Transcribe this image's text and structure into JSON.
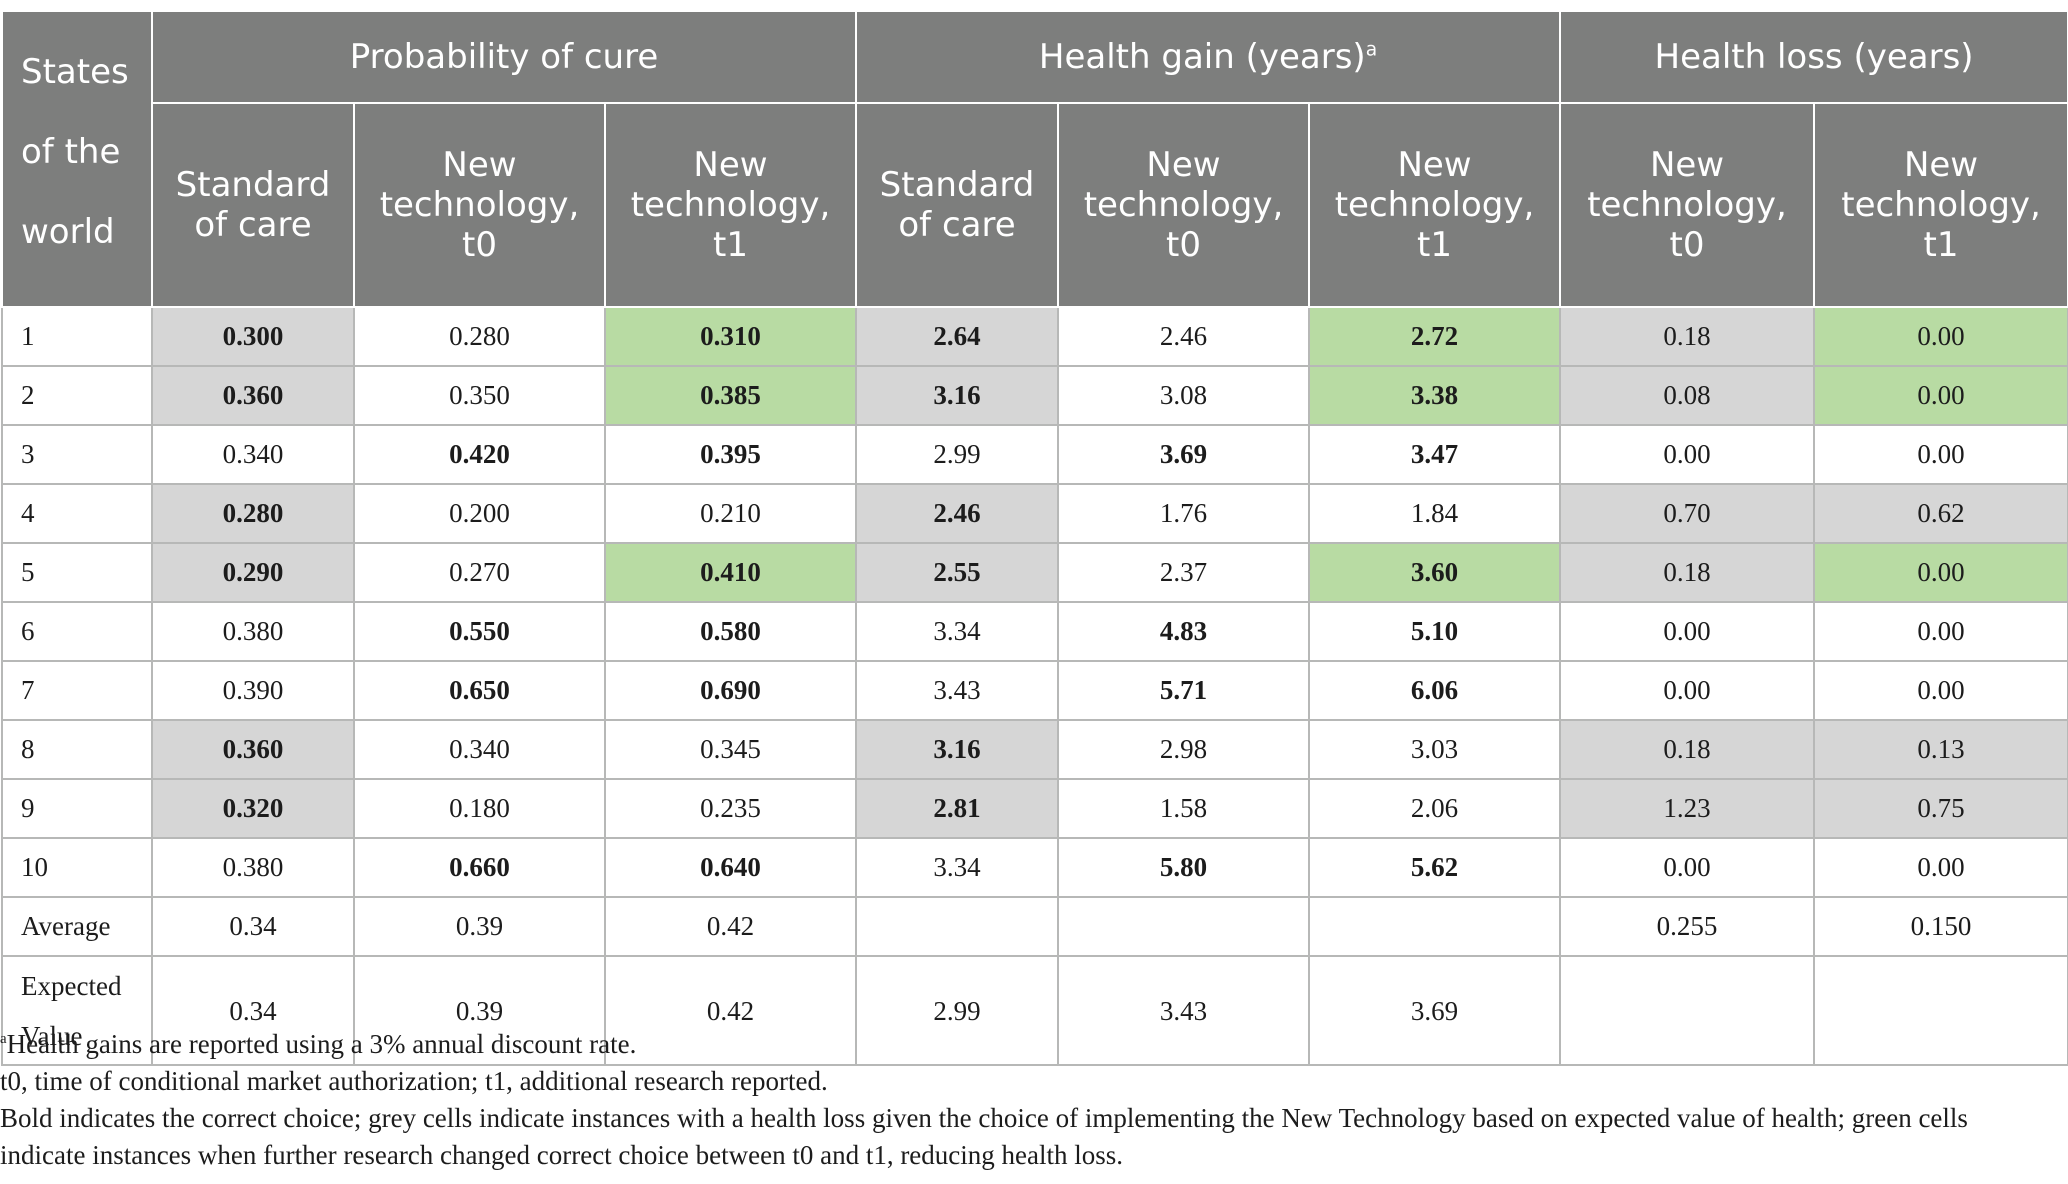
{
  "table": {
    "corner_header": [
      "States",
      "of the",
      "world"
    ],
    "groups": [
      {
        "label": "Probability of cure",
        "sup": ""
      },
      {
        "label": "Health gain (years)",
        "sup": "a"
      },
      {
        "label": "Health loss (years)",
        "sup": ""
      }
    ],
    "subheaders": [
      [
        "Standard",
        "of care"
      ],
      [
        "New",
        "technology,",
        "t0"
      ],
      [
        "New",
        "technology,",
        "t1"
      ],
      [
        "Standard",
        "of care"
      ],
      [
        "New",
        "technology,",
        "t0"
      ],
      [
        "New",
        "technology,",
        "t1"
      ],
      [
        "New",
        "technology,",
        "t0"
      ],
      [
        "New",
        "technology,",
        "t1"
      ]
    ],
    "rows": [
      {
        "label": "1",
        "cells": [
          {
            "v": "0.300",
            "b": true,
            "bg": "grey"
          },
          {
            "v": "0.280",
            "b": false,
            "bg": ""
          },
          {
            "v": "0.310",
            "b": true,
            "bg": "green"
          },
          {
            "v": "2.64",
            "b": true,
            "bg": "grey"
          },
          {
            "v": "2.46",
            "b": false,
            "bg": ""
          },
          {
            "v": "2.72",
            "b": true,
            "bg": "green"
          },
          {
            "v": "0.18",
            "b": false,
            "bg": "grey"
          },
          {
            "v": "0.00",
            "b": false,
            "bg": "green"
          }
        ]
      },
      {
        "label": "2",
        "cells": [
          {
            "v": "0.360",
            "b": true,
            "bg": "grey"
          },
          {
            "v": "0.350",
            "b": false,
            "bg": ""
          },
          {
            "v": "0.385",
            "b": true,
            "bg": "green"
          },
          {
            "v": "3.16",
            "b": true,
            "bg": "grey"
          },
          {
            "v": "3.08",
            "b": false,
            "bg": ""
          },
          {
            "v": "3.38",
            "b": true,
            "bg": "green"
          },
          {
            "v": "0.08",
            "b": false,
            "bg": "grey"
          },
          {
            "v": "0.00",
            "b": false,
            "bg": "green"
          }
        ]
      },
      {
        "label": "3",
        "cells": [
          {
            "v": "0.340",
            "b": false,
            "bg": ""
          },
          {
            "v": "0.420",
            "b": true,
            "bg": ""
          },
          {
            "v": "0.395",
            "b": true,
            "bg": ""
          },
          {
            "v": "2.99",
            "b": false,
            "bg": ""
          },
          {
            "v": "3.69",
            "b": true,
            "bg": ""
          },
          {
            "v": "3.47",
            "b": true,
            "bg": ""
          },
          {
            "v": "0.00",
            "b": false,
            "bg": ""
          },
          {
            "v": "0.00",
            "b": false,
            "bg": ""
          }
        ]
      },
      {
        "label": "4",
        "cells": [
          {
            "v": "0.280",
            "b": true,
            "bg": "grey"
          },
          {
            "v": "0.200",
            "b": false,
            "bg": ""
          },
          {
            "v": "0.210",
            "b": false,
            "bg": ""
          },
          {
            "v": "2.46",
            "b": true,
            "bg": "grey"
          },
          {
            "v": "1.76",
            "b": false,
            "bg": ""
          },
          {
            "v": "1.84",
            "b": false,
            "bg": ""
          },
          {
            "v": "0.70",
            "b": false,
            "bg": "grey"
          },
          {
            "v": "0.62",
            "b": false,
            "bg": "grey"
          }
        ]
      },
      {
        "label": "5",
        "cells": [
          {
            "v": "0.290",
            "b": true,
            "bg": "grey"
          },
          {
            "v": "0.270",
            "b": false,
            "bg": ""
          },
          {
            "v": "0.410",
            "b": true,
            "bg": "green"
          },
          {
            "v": "2.55",
            "b": true,
            "bg": "grey"
          },
          {
            "v": "2.37",
            "b": false,
            "bg": ""
          },
          {
            "v": "3.60",
            "b": true,
            "bg": "green"
          },
          {
            "v": "0.18",
            "b": false,
            "bg": "grey"
          },
          {
            "v": "0.00",
            "b": false,
            "bg": "green"
          }
        ]
      },
      {
        "label": "6",
        "cells": [
          {
            "v": "0.380",
            "b": false,
            "bg": ""
          },
          {
            "v": "0.550",
            "b": true,
            "bg": ""
          },
          {
            "v": "0.580",
            "b": true,
            "bg": ""
          },
          {
            "v": "3.34",
            "b": false,
            "bg": ""
          },
          {
            "v": "4.83",
            "b": true,
            "bg": ""
          },
          {
            "v": "5.10",
            "b": true,
            "bg": ""
          },
          {
            "v": "0.00",
            "b": false,
            "bg": ""
          },
          {
            "v": "0.00",
            "b": false,
            "bg": ""
          }
        ]
      },
      {
        "label": "7",
        "cells": [
          {
            "v": "0.390",
            "b": false,
            "bg": ""
          },
          {
            "v": "0.650",
            "b": true,
            "bg": ""
          },
          {
            "v": "0.690",
            "b": true,
            "bg": ""
          },
          {
            "v": "3.43",
            "b": false,
            "bg": ""
          },
          {
            "v": "5.71",
            "b": true,
            "bg": ""
          },
          {
            "v": "6.06",
            "b": true,
            "bg": ""
          },
          {
            "v": "0.00",
            "b": false,
            "bg": ""
          },
          {
            "v": "0.00",
            "b": false,
            "bg": ""
          }
        ]
      },
      {
        "label": "8",
        "cells": [
          {
            "v": "0.360",
            "b": true,
            "bg": "grey"
          },
          {
            "v": "0.340",
            "b": false,
            "bg": ""
          },
          {
            "v": "0.345",
            "b": false,
            "bg": ""
          },
          {
            "v": "3.16",
            "b": true,
            "bg": "grey"
          },
          {
            "v": "2.98",
            "b": false,
            "bg": ""
          },
          {
            "v": "3.03",
            "b": false,
            "bg": ""
          },
          {
            "v": "0.18",
            "b": false,
            "bg": "grey"
          },
          {
            "v": "0.13",
            "b": false,
            "bg": "grey"
          }
        ]
      },
      {
        "label": "9",
        "cells": [
          {
            "v": "0.320",
            "b": true,
            "bg": "grey"
          },
          {
            "v": "0.180",
            "b": false,
            "bg": ""
          },
          {
            "v": "0.235",
            "b": false,
            "bg": ""
          },
          {
            "v": "2.81",
            "b": true,
            "bg": "grey"
          },
          {
            "v": "1.58",
            "b": false,
            "bg": ""
          },
          {
            "v": "2.06",
            "b": false,
            "bg": ""
          },
          {
            "v": "1.23",
            "b": false,
            "bg": "grey"
          },
          {
            "v": "0.75",
            "b": false,
            "bg": "grey"
          }
        ]
      },
      {
        "label": "10",
        "cells": [
          {
            "v": "0.380",
            "b": false,
            "bg": ""
          },
          {
            "v": "0.660",
            "b": true,
            "bg": ""
          },
          {
            "v": "0.640",
            "b": true,
            "bg": ""
          },
          {
            "v": "3.34",
            "b": false,
            "bg": ""
          },
          {
            "v": "5.80",
            "b": true,
            "bg": ""
          },
          {
            "v": "5.62",
            "b": true,
            "bg": ""
          },
          {
            "v": "0.00",
            "b": false,
            "bg": ""
          },
          {
            "v": "0.00",
            "b": false,
            "bg": ""
          }
        ]
      },
      {
        "label": "Average",
        "cells": [
          {
            "v": "0.34",
            "b": false,
            "bg": ""
          },
          {
            "v": "0.39",
            "b": false,
            "bg": ""
          },
          {
            "v": "0.42",
            "b": false,
            "bg": ""
          },
          {
            "v": "",
            "b": false,
            "bg": ""
          },
          {
            "v": "",
            "b": false,
            "bg": ""
          },
          {
            "v": "",
            "b": false,
            "bg": ""
          },
          {
            "v": "0.255",
            "b": false,
            "bg": ""
          },
          {
            "v": "0.150",
            "b": false,
            "bg": ""
          }
        ]
      },
      {
        "label": "Expected Value",
        "tall": true,
        "cells": [
          {
            "v": "0.34",
            "b": false,
            "bg": ""
          },
          {
            "v": "0.39",
            "b": false,
            "bg": ""
          },
          {
            "v": "0.42",
            "b": false,
            "bg": ""
          },
          {
            "v": "2.99",
            "b": false,
            "bg": ""
          },
          {
            "v": "3.43",
            "b": false,
            "bg": ""
          },
          {
            "v": "3.69",
            "b": false,
            "bg": ""
          },
          {
            "v": "",
            "b": false,
            "bg": ""
          },
          {
            "v": "",
            "b": false,
            "bg": ""
          }
        ]
      }
    ]
  },
  "footnotes": {
    "a_marker": "a",
    "a_text": "Health gains are reported using a 3% annual discount rate.",
    "line2": "t0, time of conditional market authorization; t1, additional research reported.",
    "line3": "Bold indicates the correct choice; grey cells indicate instances with a health loss given the choice of implementing the New Technology based on expected value of health; green cells indicate instances when further research changed correct choice between t0 and t1, reducing health loss."
  },
  "colors": {
    "header_bg": "#7d7e7d",
    "grey_cell": "#d6d6d6",
    "green_cell": "#b8dba3"
  }
}
